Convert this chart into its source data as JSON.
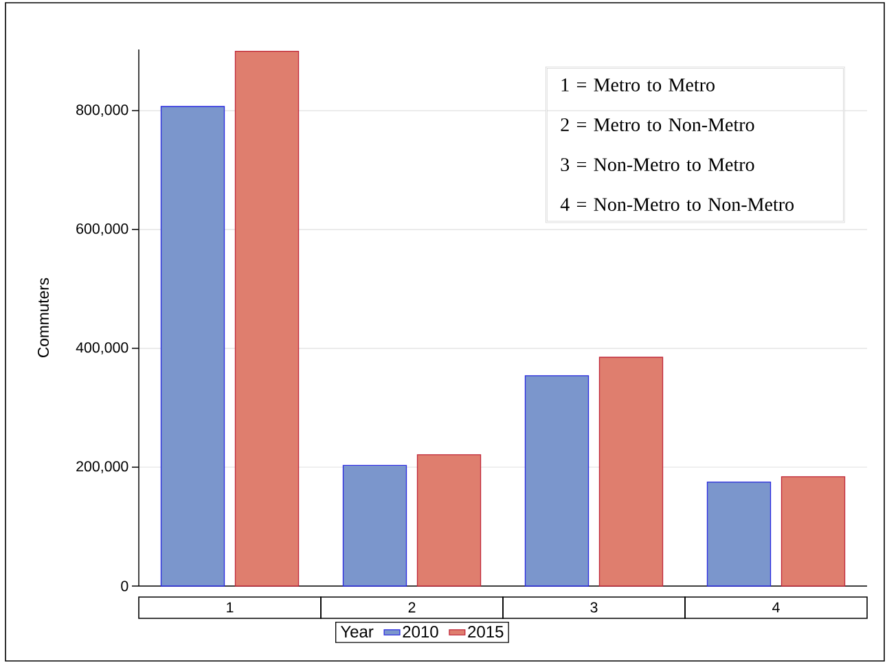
{
  "chart_data": {
    "type": "bar",
    "categories": [
      "1",
      "2",
      "3",
      "4"
    ],
    "series": [
      {
        "name": "2010",
        "color": "#7b96cc",
        "values": [
          807000,
          203000,
          354000,
          175000
        ]
      },
      {
        "name": "2015",
        "color": "#df7e6e",
        "values": [
          900000,
          221000,
          385000,
          184000
        ]
      }
    ],
    "ylabel": "Commuters",
    "ylim": [
      0,
      903000
    ],
    "yticks": [
      0,
      {
        "value": 200000,
        "label": "200,000"
      },
      {
        "value": 400000,
        "label": "400,000"
      },
      {
        "value": 600000,
        "label": "600,000"
      },
      {
        "value": 800000,
        "label": "800,000"
      }
    ],
    "grid": "y",
    "legend": "bottom",
    "legend_title": "Year",
    "annotations": [
      "1 = Metro to Metro",
      "2 = Metro to Non-Metro",
      "3 = Non-Metro to Metro",
      "4 = Non-Metro to Non-Metro"
    ]
  }
}
